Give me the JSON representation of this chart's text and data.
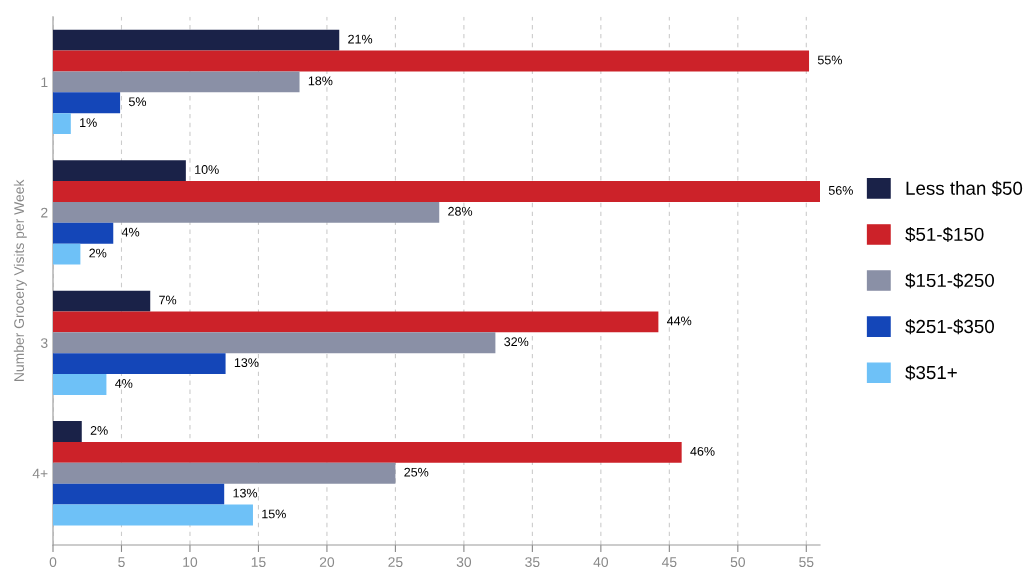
{
  "chart_data": {
    "type": "bar",
    "orientation": "horizontal",
    "ylabel": "Number Grocery Visits per Week",
    "categories": [
      "1",
      "2",
      "3",
      "4+"
    ],
    "series": [
      {
        "name": "Less than $50",
        "color": "#1a2248",
        "values": [
          20.9,
          9.7,
          7.1,
          2.1
        ],
        "value_labels": [
          "21%",
          "10%",
          "7%",
          "2%"
        ]
      },
      {
        "name": "$51-$150",
        "color": "#cc2229",
        "values": [
          55.2,
          56,
          44.2,
          45.9
        ],
        "value_labels": [
          "55%",
          "56%",
          "44%",
          "46%"
        ]
      },
      {
        "name": "$151-$250",
        "color": "#8a90a6",
        "values": [
          18,
          28.2,
          32.3,
          25
        ],
        "value_labels": [
          "18%",
          "28%",
          "32%",
          "25%"
        ]
      },
      {
        "name": "$251-$350",
        "color": "#1446b8",
        "values": [
          4.9,
          4.4,
          12.6,
          12.5
        ],
        "value_labels": [
          "5%",
          "4%",
          "13%",
          "13%"
        ]
      },
      {
        "name": "$351+",
        "color": "#6ec1f7",
        "values": [
          1.3,
          2,
          3.9,
          14.6
        ],
        "value_labels": [
          "1%",
          "2%",
          "4%",
          "15%"
        ]
      }
    ],
    "xlim": [
      0,
      56
    ],
    "xticks": [
      0,
      5,
      10,
      15,
      20,
      25,
      30,
      35,
      40,
      45,
      50,
      55
    ],
    "grid": "x",
    "legend": "right"
  }
}
